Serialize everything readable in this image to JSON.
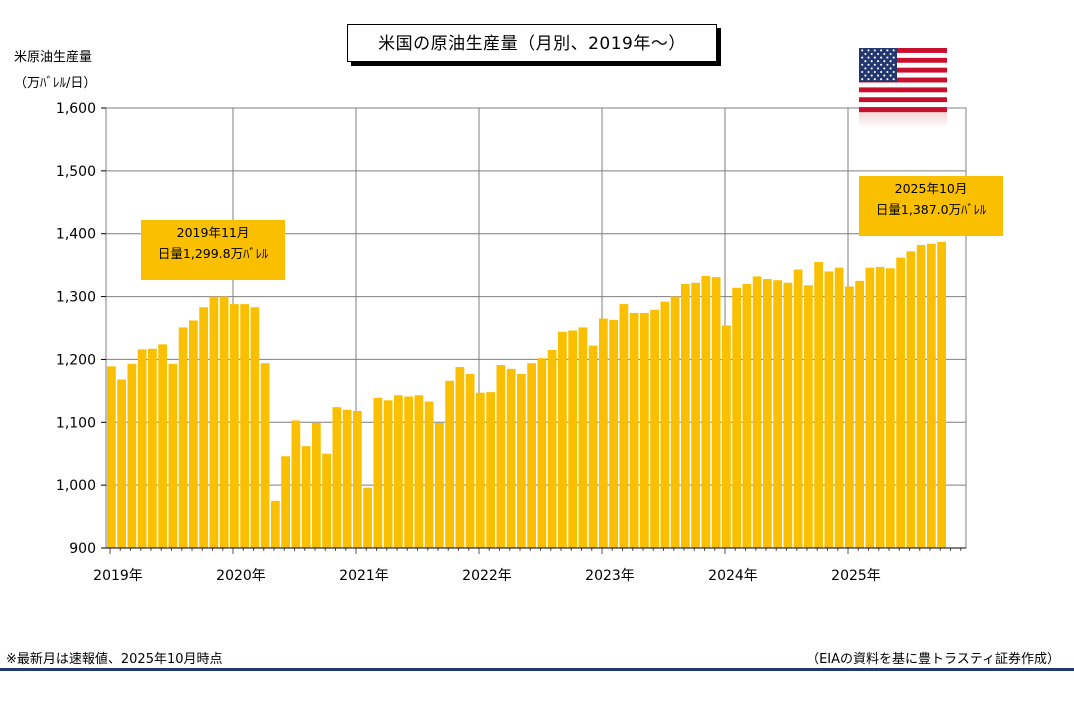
{
  "title": "米国の原油生産量（月別、2019年～）",
  "ylabel_line1": "米原油生産量",
  "ylabel_line2": "（万ﾊﾞﾚﾙ/日）",
  "annotation_first": {
    "line1": "2019年11月",
    "line2": "日量1,299.8万ﾊﾞﾚﾙ"
  },
  "annotation_last": {
    "line1": "2025年10月",
    "line2": "日量1,387.0万ﾊﾞﾚﾙ"
  },
  "footer_note": "※最新月は速報値、2025年10月時点",
  "footer_source": "（EIAの資料を基に豊トラスティ証券作成）",
  "colors": {
    "bar": "#fac000",
    "grid": "#7f7f7f",
    "footer_rule": "#1f3b70"
  },
  "flag_icon": "us-flag-icon",
  "chart_data": {
    "type": "bar",
    "title": "米国の原油生産量（月別、2019年～）",
    "ylabel": "米原油生産量（万ﾊﾞﾚﾙ/日）",
    "ylim": [
      900,
      1600
    ],
    "yticks": [
      900,
      1000,
      1100,
      1200,
      1300,
      1400,
      1500,
      1600
    ],
    "ytick_labels": [
      "900",
      "1,000",
      "1,100",
      "1,200",
      "1,300",
      "1,400",
      "1,500",
      "1,600"
    ],
    "xtick_labels": [
      "2019年",
      "2020年",
      "2021年",
      "2022年",
      "2023年",
      "2024年",
      "2025年"
    ],
    "start": "2019-01",
    "end": "2025-10",
    "grid": true,
    "values": [
      1189,
      1168,
      1193,
      1216,
      1217,
      1224,
      1193,
      1251,
      1262,
      1283,
      1299.8,
      1300,
      1288,
      1288,
      1283,
      1194,
      975,
      1046,
      1103,
      1062,
      1099,
      1050,
      1124,
      1120,
      1118,
      996,
      1139,
      1135,
      1143,
      1141,
      1143,
      1133,
      1099,
      1166,
      1188,
      1177,
      1147,
      1148,
      1191,
      1185,
      1177,
      1194,
      1202,
      1215,
      1244,
      1246,
      1251,
      1222,
      1265,
      1263,
      1288,
      1274,
      1274,
      1279,
      1292,
      1300,
      1320,
      1322,
      1333,
      1331,
      1254,
      1314,
      1320,
      1332,
      1328,
      1326,
      1322,
      1343,
      1318,
      1355,
      1340,
      1346,
      1316,
      1325,
      1346,
      1347,
      1345,
      1362,
      1372,
      1382,
      1384,
      1387.0
    ]
  }
}
